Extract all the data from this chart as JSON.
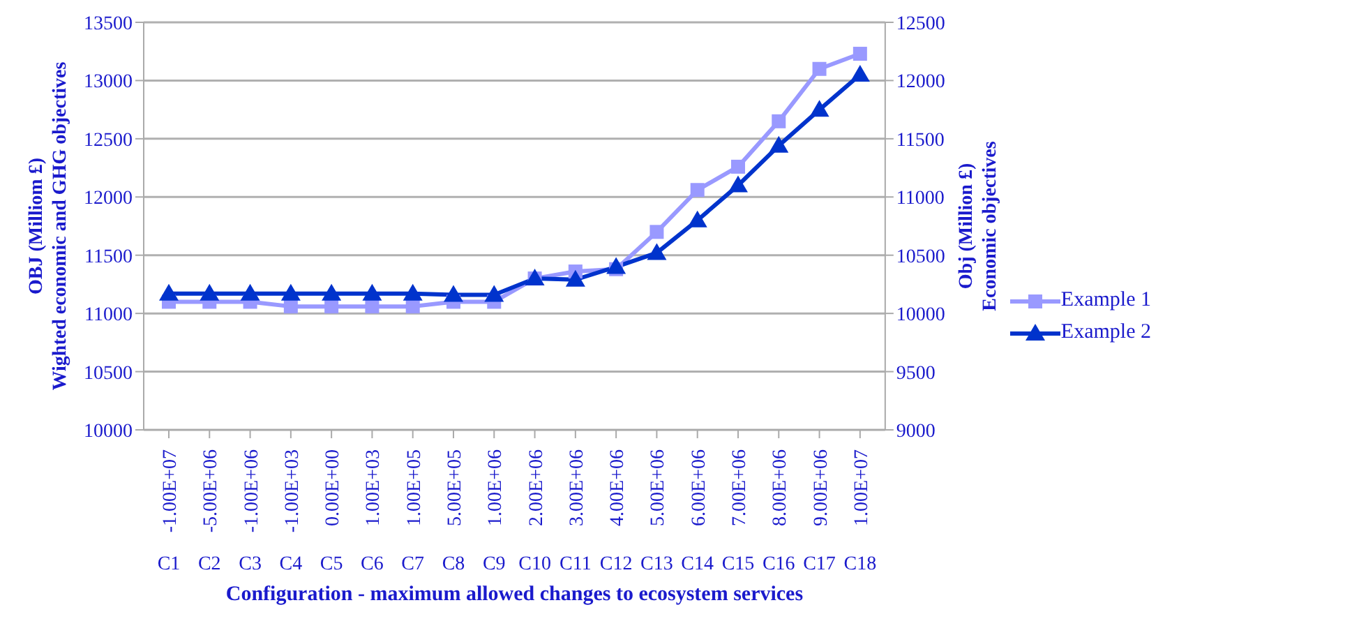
{
  "chart_data": {
    "type": "line",
    "xlabel": "Configuration - maximum allowed changes to ecosystem services",
    "ylabel": "OBJ (Milliom  £)\nWighted economic and GHG objectives",
    "y2label": "Obj (Million  £)\nEconomic objectives",
    "categories": [
      "-1.00E+07\nC1",
      "-5.00E+06\nC2",
      "-1.00E+06\nC3",
      "-1.00E+03\nC4",
      "0.00E+00\nC5",
      "1.00E+03\nC6",
      "1.00E+05\nC7",
      "5.00E+05\nC8",
      "1.00E+06\nC9",
      "2.00E+06\nC10",
      "3.00E+06\nC11",
      "4.00E+06\nC12",
      "5.00E+06\nC13",
      "6.00E+06\nC14",
      "7.00E+06\nC15",
      "8.00E+06\nC16",
      "9.00E+06\nC17",
      "1.00E+07\nC18"
    ],
    "series": [
      {
        "name": "Example 1",
        "color": "#9999ff",
        "marker": "square",
        "values": [
          11100,
          11100,
          11100,
          11060,
          11060,
          11060,
          11060,
          11100,
          11100,
          11300,
          11360,
          11380,
          11700,
          12060,
          12260,
          12650,
          13100,
          13230
        ]
      },
      {
        "name": "Example 2",
        "color": "#0033cc",
        "marker": "triangle",
        "axis": "y2",
        "values": [
          10170,
          10170,
          10170,
          10170,
          10170,
          10170,
          10170,
          10160,
          10160,
          10300,
          10290,
          10400,
          10520,
          10800,
          11100,
          11440,
          11750,
          12050
        ]
      }
    ],
    "ylim": [
      10000,
      13500
    ],
    "yticks": [
      10000,
      10500,
      11000,
      11500,
      12000,
      12500,
      13000,
      13500
    ],
    "y2lim": [
      9000,
      12500
    ],
    "y2ticks": [
      9000,
      9500,
      10000,
      10500,
      11000,
      11500,
      12000,
      12500
    ],
    "grid": "y",
    "legend": "right"
  }
}
